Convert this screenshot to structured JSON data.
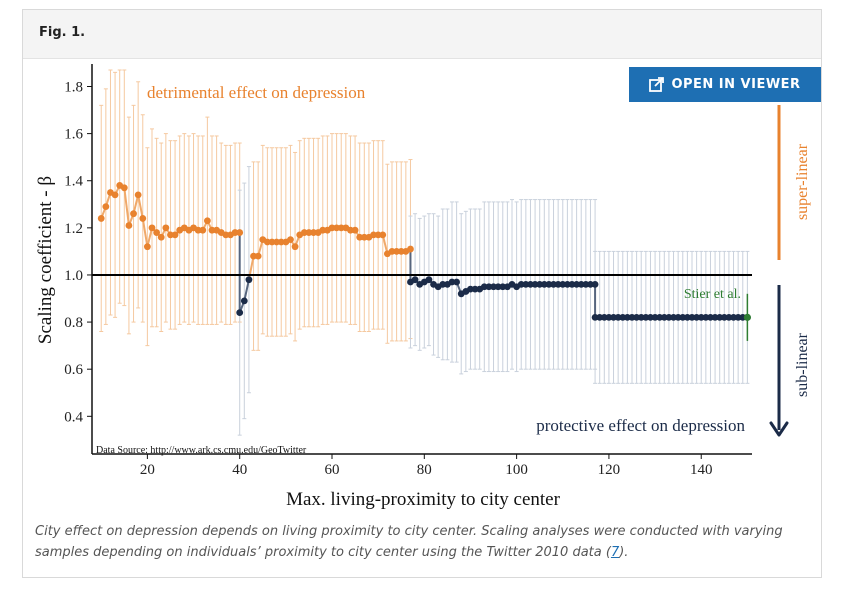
{
  "figure": {
    "label": "Fig. 1.",
    "open_in_viewer": "OPEN IN VIEWER",
    "caption_text": "City effect on depression depends on living proximity to city center. Scaling analyses were conducted with varying samples depending on individuals’ proximity to city center using the Twitter 2010 data (",
    "caption_ref": "7",
    "caption_end": ")."
  },
  "colors": {
    "super": "#e8822e",
    "super_light": "#f5c9a0",
    "sub": "#1b2b48",
    "sub_light": "#c9d1dc",
    "stier": "#2e7d32",
    "button": "#1e6fb3"
  },
  "chart_data": {
    "type": "scatter",
    "xlabel": "Max. living-proximity to city center",
    "ylabel": "Scaling coefficient - β",
    "xlim": [
      8,
      151
    ],
    "ylim": [
      0.24,
      1.87
    ],
    "xticks": [
      20,
      40,
      60,
      80,
      100,
      120,
      140
    ],
    "yticks": [
      0.4,
      0.6,
      0.8,
      1.0,
      1.2,
      1.4,
      1.6,
      1.8
    ],
    "reference_line": 1.0,
    "annotations": {
      "top": "detrimental effect on depression",
      "bottom": "protective effect on depression",
      "super_linear": "super-linear",
      "sub_linear": "sub-linear",
      "stier": "Stier et al.",
      "source": "Data Source: http://www.ark.cs.cmu.edu/GeoTwitter"
    },
    "stier_point": {
      "x": 150,
      "y": 0.82,
      "low": 0.72,
      "high": 0.92
    },
    "series": [
      {
        "group": "super",
        "x": [
          10,
          11,
          12,
          13,
          14,
          15,
          16,
          17,
          18,
          19,
          20,
          21,
          22,
          23,
          24,
          25,
          26,
          27,
          28,
          29,
          30,
          31,
          32,
          33,
          34,
          35,
          36,
          37,
          38,
          39,
          40
        ],
        "y": [
          1.24,
          1.29,
          1.35,
          1.34,
          1.38,
          1.37,
          1.21,
          1.26,
          1.34,
          1.24,
          1.12,
          1.2,
          1.18,
          1.16,
          1.2,
          1.17,
          1.17,
          1.19,
          1.2,
          1.19,
          1.2,
          1.19,
          1.19,
          1.23,
          1.19,
          1.19,
          1.18,
          1.17,
          1.17,
          1.18,
          1.18
        ],
        "err": [
          0.48,
          0.5,
          0.52,
          0.52,
          0.5,
          0.5,
          0.46,
          0.46,
          0.48,
          0.44,
          0.42,
          0.42,
          0.4,
          0.4,
          0.4,
          0.4,
          0.4,
          0.4,
          0.4,
          0.4,
          0.4,
          0.4,
          0.4,
          0.44,
          0.4,
          0.4,
          0.38,
          0.38,
          0.38,
          0.38,
          0.38
        ]
      },
      {
        "group": "sub",
        "x": [
          40,
          41,
          42
        ],
        "y": [
          0.84,
          0.89,
          0.98
        ],
        "err": [
          0.52,
          0.5,
          0.48
        ]
      },
      {
        "group": "super",
        "x": [
          43,
          44,
          45,
          46,
          47,
          48,
          49,
          50,
          51,
          52,
          53,
          54,
          55,
          56,
          57,
          58,
          59,
          60,
          61,
          62,
          63,
          64,
          65,
          66,
          67,
          68,
          69,
          70,
          71,
          72,
          73,
          74,
          75,
          76,
          77
        ],
        "y": [
          1.08,
          1.08,
          1.15,
          1.14,
          1.14,
          1.14,
          1.14,
          1.14,
          1.15,
          1.12,
          1.17,
          1.18,
          1.18,
          1.18,
          1.18,
          1.19,
          1.19,
          1.2,
          1.2,
          1.2,
          1.2,
          1.19,
          1.19,
          1.16,
          1.16,
          1.16,
          1.17,
          1.17,
          1.17,
          1.09,
          1.1,
          1.1,
          1.1,
          1.1,
          1.11
        ],
        "err": [
          0.4,
          0.4,
          0.4,
          0.4,
          0.4,
          0.4,
          0.4,
          0.4,
          0.4,
          0.4,
          0.4,
          0.4,
          0.4,
          0.4,
          0.4,
          0.4,
          0.4,
          0.4,
          0.4,
          0.4,
          0.4,
          0.4,
          0.4,
          0.4,
          0.4,
          0.4,
          0.4,
          0.4,
          0.4,
          0.38,
          0.38,
          0.38,
          0.38,
          0.38,
          0.38
        ]
      },
      {
        "group": "sub",
        "x": [
          77,
          78,
          79,
          80,
          81,
          82,
          83,
          84,
          85,
          86,
          87,
          88,
          89,
          90,
          91,
          92,
          93,
          94,
          95,
          96,
          97,
          98,
          99,
          100,
          101,
          102,
          103,
          104,
          105,
          106,
          107,
          108,
          109,
          110,
          111,
          112,
          113,
          114,
          115,
          116,
          117
        ],
        "y": [
          0.97,
          0.98,
          0.96,
          0.97,
          0.98,
          0.96,
          0.95,
          0.96,
          0.96,
          0.97,
          0.97,
          0.92,
          0.93,
          0.94,
          0.94,
          0.94,
          0.95,
          0.95,
          0.95,
          0.95,
          0.95,
          0.95,
          0.96,
          0.95,
          0.96,
          0.96,
          0.96,
          0.96,
          0.96,
          0.96,
          0.96,
          0.96,
          0.96,
          0.96,
          0.96,
          0.96,
          0.96,
          0.96,
          0.96,
          0.96,
          0.96
        ],
        "err": [
          0.28,
          0.28,
          0.28,
          0.28,
          0.28,
          0.3,
          0.3,
          0.32,
          0.32,
          0.34,
          0.34,
          0.34,
          0.34,
          0.34,
          0.34,
          0.34,
          0.36,
          0.36,
          0.36,
          0.36,
          0.36,
          0.36,
          0.36,
          0.36,
          0.36,
          0.36,
          0.36,
          0.36,
          0.36,
          0.36,
          0.36,
          0.36,
          0.36,
          0.36,
          0.36,
          0.36,
          0.36,
          0.36,
          0.36,
          0.36,
          0.36
        ]
      },
      {
        "group": "sub",
        "x": [
          117,
          118,
          119,
          120,
          121,
          122,
          123,
          124,
          125,
          126,
          127,
          128,
          129,
          130,
          131,
          132,
          133,
          134,
          135,
          136,
          137,
          138,
          139,
          140,
          141,
          142,
          143,
          144,
          145,
          146,
          147,
          148,
          149,
          150
        ],
        "y": [
          0.82,
          0.82,
          0.82,
          0.82,
          0.82,
          0.82,
          0.82,
          0.82,
          0.82,
          0.82,
          0.82,
          0.82,
          0.82,
          0.82,
          0.82,
          0.82,
          0.82,
          0.82,
          0.82,
          0.82,
          0.82,
          0.82,
          0.82,
          0.82,
          0.82,
          0.82,
          0.82,
          0.82,
          0.82,
          0.82,
          0.82,
          0.82,
          0.82,
          0.82
        ],
        "err": [
          0.28,
          0.28,
          0.28,
          0.28,
          0.28,
          0.28,
          0.28,
          0.28,
          0.28,
          0.28,
          0.28,
          0.28,
          0.28,
          0.28,
          0.28,
          0.28,
          0.28,
          0.28,
          0.28,
          0.28,
          0.28,
          0.28,
          0.28,
          0.28,
          0.28,
          0.28,
          0.28,
          0.28,
          0.28,
          0.28,
          0.28,
          0.28,
          0.28,
          0.28
        ]
      }
    ]
  }
}
